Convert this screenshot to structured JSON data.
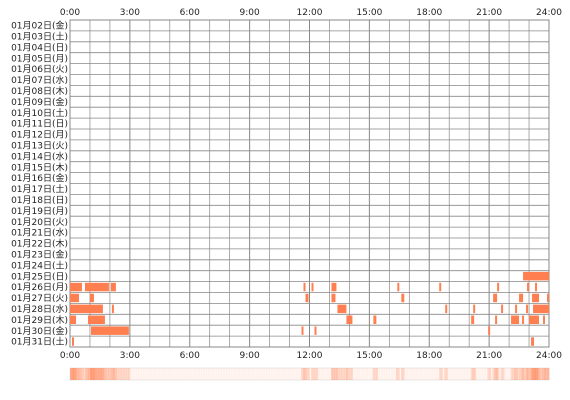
{
  "chart_data": {
    "type": "heatmap",
    "title": "",
    "xlabel": "",
    "ylabel": "",
    "x_tick_labels": [
      "0:00",
      "3:00",
      "6:00",
      "9:00",
      "12:00",
      "15:00",
      "18:00",
      "21:00",
      "24:00"
    ],
    "xlim_hours": [
      0,
      24
    ],
    "grid": true,
    "rows": [
      {
        "label": "01月02日(金)",
        "activity_hours": []
      },
      {
        "label": "01月03日(土)",
        "activity_hours": []
      },
      {
        "label": "01月04日(日)",
        "activity_hours": []
      },
      {
        "label": "01月05日(月)",
        "activity_hours": []
      },
      {
        "label": "01月06日(火)",
        "activity_hours": []
      },
      {
        "label": "01月07日(水)",
        "activity_hours": []
      },
      {
        "label": "01月08日(木)",
        "activity_hours": []
      },
      {
        "label": "01月09日(金)",
        "activity_hours": []
      },
      {
        "label": "01月10日(土)",
        "activity_hours": []
      },
      {
        "label": "01月11日(日)",
        "activity_hours": []
      },
      {
        "label": "01月12日(月)",
        "activity_hours": []
      },
      {
        "label": "01月13日(火)",
        "activity_hours": []
      },
      {
        "label": "01月14日(水)",
        "activity_hours": []
      },
      {
        "label": "01月15日(木)",
        "activity_hours": []
      },
      {
        "label": "01月16日(金)",
        "activity_hours": []
      },
      {
        "label": "01月17日(土)",
        "activity_hours": []
      },
      {
        "label": "01月18日(日)",
        "activity_hours": []
      },
      {
        "label": "01月19日(月)",
        "activity_hours": []
      },
      {
        "label": "01月20日(火)",
        "activity_hours": []
      },
      {
        "label": "01月21日(水)",
        "activity_hours": []
      },
      {
        "label": "01月22日(木)",
        "activity_hours": []
      },
      {
        "label": "01月23日(金)",
        "activity_hours": []
      },
      {
        "label": "01月24日(土)",
        "activity_hours": []
      },
      {
        "label": "01月25日(日)",
        "activity_hours": [
          [
            22.7,
            24.0
          ]
        ]
      },
      {
        "label": "01月26日(月)",
        "activity_hours": [
          [
            0.0,
            0.6
          ],
          [
            0.75,
            1.95
          ],
          [
            2.05,
            2.3
          ],
          [
            11.7,
            11.8
          ],
          [
            12.1,
            12.2
          ],
          [
            13.1,
            13.35
          ],
          [
            16.4,
            16.5
          ],
          [
            18.5,
            18.6
          ],
          [
            21.4,
            21.5
          ],
          [
            22.9,
            23.0
          ],
          [
            23.3,
            23.4
          ]
        ]
      },
      {
        "label": "01月27日(火)",
        "activity_hours": [
          [
            0.0,
            0.45
          ],
          [
            1.0,
            1.2
          ],
          [
            11.8,
            11.95
          ],
          [
            13.1,
            13.3
          ],
          [
            16.6,
            16.75
          ],
          [
            21.2,
            21.4
          ],
          [
            22.5,
            22.7
          ],
          [
            23.15,
            23.5
          ],
          [
            23.9,
            24.0
          ]
        ]
      },
      {
        "label": "01月28日(水)",
        "activity_hours": [
          [
            0.0,
            1.65
          ],
          [
            2.1,
            2.2
          ],
          [
            13.4,
            13.85
          ],
          [
            18.8,
            18.9
          ],
          [
            20.2,
            20.3
          ],
          [
            21.6,
            21.7
          ],
          [
            22.3,
            22.4
          ],
          [
            22.85,
            22.95
          ],
          [
            23.2,
            24.0
          ]
        ]
      },
      {
        "label": "01月29日(木)",
        "activity_hours": [
          [
            0.0,
            0.3
          ],
          [
            0.9,
            1.75
          ],
          [
            13.85,
            14.15
          ],
          [
            15.2,
            15.35
          ],
          [
            20.1,
            20.25
          ],
          [
            21.3,
            21.4
          ],
          [
            22.1,
            22.5
          ],
          [
            22.65,
            22.75
          ],
          [
            23.0,
            23.5
          ],
          [
            23.7,
            23.8
          ]
        ]
      },
      {
        "label": "01月30日(金)",
        "activity_hours": [
          [
            1.05,
            2.95
          ],
          [
            11.6,
            11.7
          ],
          [
            12.25,
            12.35
          ],
          [
            20.95,
            21.05
          ]
        ]
      },
      {
        "label": "01月31日(土)",
        "activity_hours": [
          [
            0.1,
            0.2
          ],
          [
            23.1,
            23.25
          ]
        ]
      }
    ],
    "bar_color": "#ff7f50",
    "strip_color": "#ff7f50",
    "grid_color": "#888888"
  }
}
